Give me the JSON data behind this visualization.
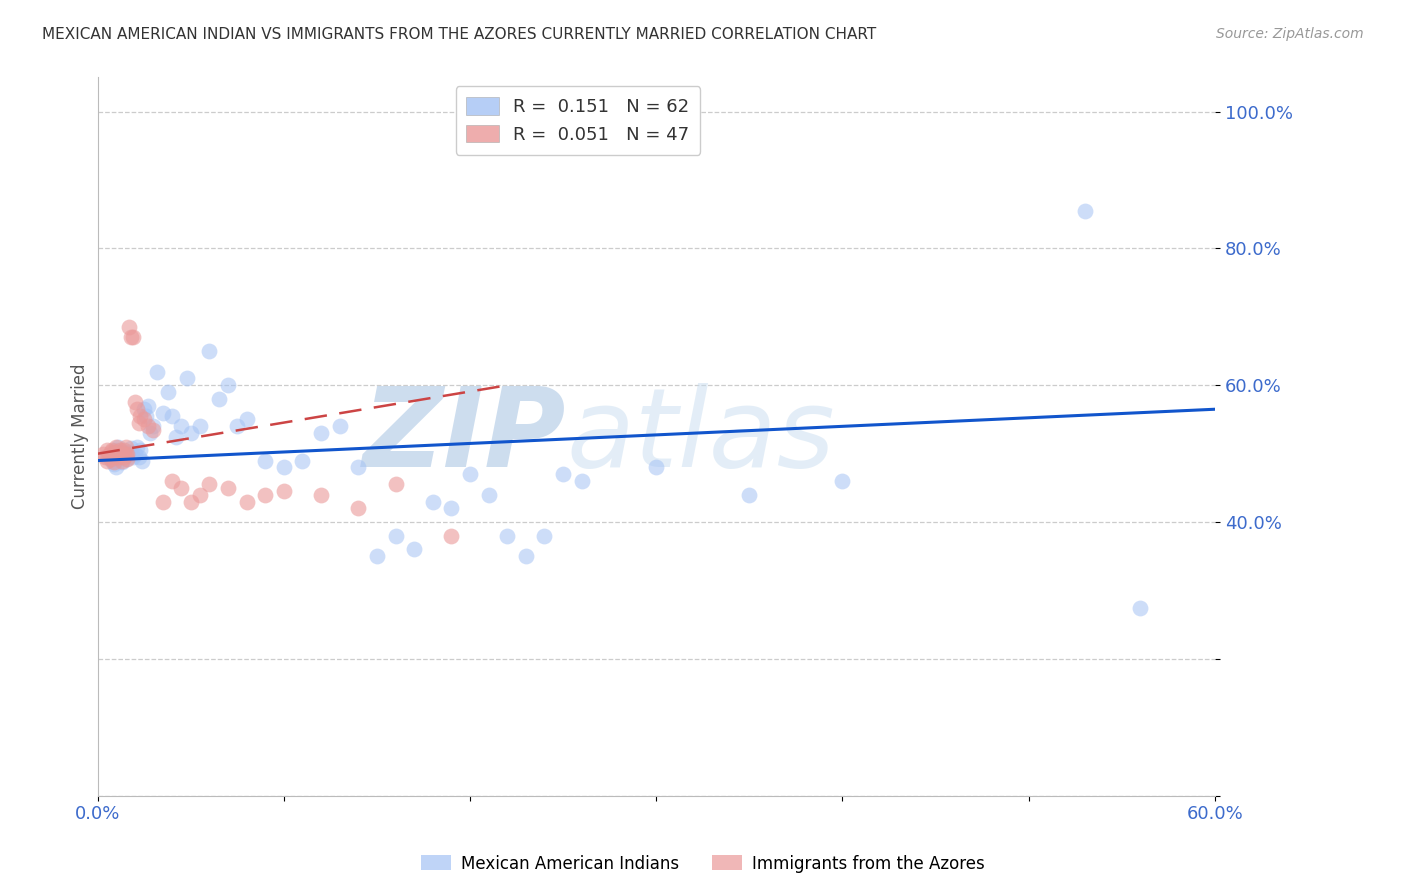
{
  "title": "MEXICAN AMERICAN INDIAN VS IMMIGRANTS FROM THE AZORES CURRENTLY MARRIED CORRELATION CHART",
  "source": "Source: ZipAtlas.com",
  "ylabel_label": "Currently Married",
  "x_min": 0.0,
  "x_max": 0.6,
  "y_min": 0.0,
  "y_max": 1.05,
  "x_ticks": [
    0.0,
    0.1,
    0.2,
    0.3,
    0.4,
    0.5,
    0.6
  ],
  "x_tick_labels": [
    "0.0%",
    "",
    "",
    "",
    "",
    "",
    "60.0%"
  ],
  "y_ticks": [
    0.0,
    0.2,
    0.4,
    0.6,
    0.8,
    1.0
  ],
  "y_tick_labels": [
    "",
    "",
    "40.0%",
    "60.0%",
    "80.0%",
    "100.0%"
  ],
  "blue_color": "#a4c2f4",
  "pink_color": "#ea9999",
  "line_blue": "#1155cc",
  "line_pink": "#cc4444",
  "grid_color": "#cccccc",
  "watermark_zip": "ZIP",
  "watermark_atlas": "atlas",
  "legend_R_blue": "0.151",
  "legend_N_blue": "62",
  "legend_R_pink": "0.051",
  "legend_N_pink": "47",
  "blue_scatter_x": [
    0.005,
    0.007,
    0.008,
    0.009,
    0.01,
    0.01,
    0.011,
    0.012,
    0.013,
    0.014,
    0.015,
    0.016,
    0.017,
    0.018,
    0.019,
    0.02,
    0.021,
    0.022,
    0.023,
    0.024,
    0.025,
    0.026,
    0.027,
    0.028,
    0.03,
    0.032,
    0.035,
    0.038,
    0.04,
    0.042,
    0.045,
    0.048,
    0.05,
    0.055,
    0.06,
    0.065,
    0.07,
    0.075,
    0.08,
    0.09,
    0.1,
    0.11,
    0.12,
    0.13,
    0.14,
    0.15,
    0.16,
    0.17,
    0.18,
    0.19,
    0.2,
    0.21,
    0.22,
    0.23,
    0.24,
    0.25,
    0.26,
    0.3,
    0.35,
    0.4,
    0.53,
    0.56
  ],
  "blue_scatter_y": [
    0.495,
    0.5,
    0.49,
    0.485,
    0.48,
    0.505,
    0.51,
    0.495,
    0.488,
    0.502,
    0.492,
    0.498,
    0.503,
    0.508,
    0.495,
    0.5,
    0.51,
    0.495,
    0.505,
    0.49,
    0.565,
    0.555,
    0.57,
    0.53,
    0.54,
    0.62,
    0.56,
    0.59,
    0.555,
    0.525,
    0.54,
    0.61,
    0.53,
    0.54,
    0.65,
    0.58,
    0.6,
    0.54,
    0.55,
    0.49,
    0.48,
    0.49,
    0.53,
    0.54,
    0.48,
    0.35,
    0.38,
    0.36,
    0.43,
    0.42,
    0.47,
    0.44,
    0.38,
    0.35,
    0.38,
    0.47,
    0.46,
    0.48,
    0.44,
    0.46,
    0.855,
    0.275
  ],
  "pink_scatter_x": [
    0.003,
    0.004,
    0.005,
    0.005,
    0.006,
    0.007,
    0.007,
    0.008,
    0.008,
    0.009,
    0.009,
    0.01,
    0.01,
    0.011,
    0.012,
    0.013,
    0.013,
    0.014,
    0.014,
    0.015,
    0.015,
    0.016,
    0.016,
    0.017,
    0.018,
    0.019,
    0.02,
    0.021,
    0.022,
    0.023,
    0.025,
    0.027,
    0.03,
    0.035,
    0.04,
    0.045,
    0.05,
    0.055,
    0.06,
    0.07,
    0.08,
    0.09,
    0.1,
    0.12,
    0.14,
    0.16,
    0.19
  ],
  "pink_scatter_y": [
    0.5,
    0.495,
    0.505,
    0.49,
    0.498,
    0.502,
    0.492,
    0.505,
    0.495,
    0.5,
    0.488,
    0.502,
    0.51,
    0.495,
    0.505,
    0.5,
    0.49,
    0.505,
    0.495,
    0.5,
    0.51,
    0.5,
    0.492,
    0.685,
    0.67,
    0.67,
    0.575,
    0.565,
    0.545,
    0.555,
    0.55,
    0.54,
    0.535,
    0.43,
    0.46,
    0.45,
    0.43,
    0.44,
    0.455,
    0.45,
    0.43,
    0.44,
    0.445,
    0.44,
    0.42,
    0.455,
    0.38
  ],
  "blue_line_x": [
    0.0,
    0.6
  ],
  "blue_line_y": [
    0.49,
    0.565
  ],
  "pink_line_x": [
    0.0,
    0.22
  ],
  "pink_line_y": [
    0.5,
    0.6
  ],
  "tick_color": "#3d6bcc",
  "label_color": "#555555"
}
